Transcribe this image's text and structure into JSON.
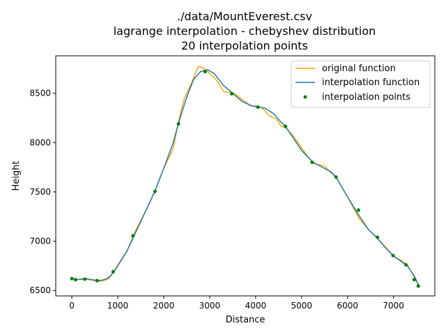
{
  "chart_data": {
    "type": "line",
    "title_lines": [
      "./data/MountEverest.csv",
      "lagrange interpolation - chebyshev distribution",
      "20 interpolation points"
    ],
    "xlabel": "Distance",
    "ylabel": "Height",
    "xlim": [
      -350,
      7900
    ],
    "ylim": [
      6445,
      8880
    ],
    "xticks": [
      0,
      1000,
      2000,
      3000,
      4000,
      5000,
      6000,
      7000
    ],
    "yticks": [
      6500,
      7000,
      7500,
      8000,
      8500
    ],
    "grid": false,
    "legend_position": "top-right",
    "series": [
      {
        "name": "original function",
        "color": "#ffa500",
        "style": "line",
        "x": [
          0,
          100,
          300,
          500,
          600,
          700,
          800,
          900,
          1000,
          1200,
          1400,
          1600,
          1800,
          2000,
          2200,
          2350,
          2450,
          2600,
          2750,
          2850,
          3000,
          3100,
          3200,
          3300,
          3400,
          3500,
          3700,
          3900,
          4050,
          4150,
          4300,
          4450,
          4550,
          4650,
          4800,
          4950,
          5100,
          5250,
          5350,
          5500,
          5650,
          5750,
          6000,
          6250,
          6450,
          6650,
          6850,
          7000,
          7150,
          7300,
          7450,
          7550
        ],
        "y": [
          6620,
          6610,
          6615,
          6600,
          6595,
          6600,
          6620,
          6680,
          6760,
          6900,
          7120,
          7300,
          7500,
          7740,
          7930,
          8270,
          8450,
          8600,
          8770,
          8760,
          8700,
          8660,
          8600,
          8520,
          8510,
          8510,
          8440,
          8370,
          8370,
          8350,
          8270,
          8240,
          8170,
          8150,
          8080,
          7980,
          7880,
          7790,
          7780,
          7760,
          7690,
          7650,
          7450,
          7230,
          7120,
          7030,
          6930,
          6850,
          6810,
          6760,
          6640,
          6550
        ]
      },
      {
        "name": "interpolation function",
        "color": "#1f77b4",
        "style": "line",
        "x": [
          0,
          100,
          300,
          500,
          600,
          700,
          800,
          900,
          1000,
          1200,
          1400,
          1600,
          1800,
          2000,
          2200,
          2350,
          2500,
          2650,
          2800,
          2950,
          3100,
          3300,
          3500,
          3700,
          3900,
          4050,
          4200,
          4400,
          4550,
          4650,
          4800,
          5000,
          5250,
          5450,
          5650,
          5750,
          6000,
          6250,
          6450,
          6650,
          6850,
          7000,
          7150,
          7300,
          7450,
          7550
        ],
        "y": [
          6620,
          6610,
          6620,
          6605,
          6600,
          6610,
          6630,
          6680,
          6750,
          6900,
          7100,
          7300,
          7500,
          7740,
          7990,
          8240,
          8460,
          8640,
          8720,
          8740,
          8700,
          8580,
          8500,
          8420,
          8375,
          8360,
          8350,
          8290,
          8210,
          8160,
          8060,
          7920,
          7800,
          7750,
          7700,
          7650,
          7450,
          7260,
          7120,
          7030,
          6920,
          6850,
          6800,
          6750,
          6650,
          6550
        ]
      },
      {
        "name": "interpolation points",
        "color": "#008000",
        "style": "points",
        "x": [
          0,
          80,
          280,
          550,
          900,
          1330,
          1810,
          2320,
          2900,
          3480,
          4050,
          4650,
          5230,
          5750,
          6240,
          6650,
          6990,
          7270,
          7450,
          7540
        ],
        "y": [
          6620,
          6610,
          6615,
          6600,
          6690,
          7055,
          7505,
          8190,
          8720,
          8495,
          8360,
          8165,
          7800,
          7650,
          7315,
          7040,
          6855,
          6760,
          6610,
          6545
        ]
      }
    ]
  }
}
